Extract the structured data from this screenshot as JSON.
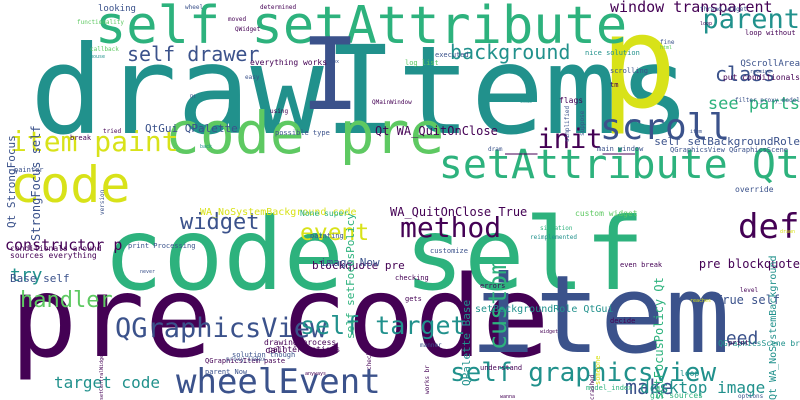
{
  "palette": {
    "dark_purple": "#440154",
    "indigo": "#3b528b",
    "teal": "#21918c",
    "green": "#2db27d",
    "lime": "#5ec962",
    "yellow": "#d8e219",
    "background": "#ffffff"
  },
  "words": [
    {
      "text": "code self",
      "color": "#2db27d"
    },
    {
      "text": "pre code",
      "color": "#440154"
    },
    {
      "text": "item",
      "color": "#3b528b"
    },
    {
      "text": "drawItems",
      "color": "#21918c"
    },
    {
      "text": "p",
      "color": "#d8e219"
    },
    {
      "text": "self setAttribute",
      "color": "#2db27d"
    },
    {
      "text": "code pre",
      "color": "#5ec962"
    },
    {
      "text": "code",
      "color": "#d8e219"
    },
    {
      "text": "I",
      "color": "#3b528b"
    },
    {
      "text": "setAttribute Qt",
      "color": "#2db27d"
    },
    {
      "text": "wheelEvent",
      "color": "#3b528b"
    },
    {
      "text": "self graphicsview",
      "color": "#21918c"
    },
    {
      "text": "QGraphicsView",
      "color": "#3b528b"
    },
    {
      "text": "self target",
      "color": "#21918c"
    },
    {
      "text": "scroll",
      "color": "#3b528b"
    },
    {
      "text": "item paint",
      "color": "#d8e219"
    },
    {
      "text": "method",
      "color": "#440154"
    },
    {
      "text": "def",
      "color": "#440154"
    },
    {
      "text": "self drawer",
      "color": "#3b528b"
    },
    {
      "text": "background",
      "color": "#21918c"
    },
    {
      "text": "__init__",
      "color": "#440154"
    },
    {
      "text": "widget",
      "color": "#3b528b"
    },
    {
      "text": "event",
      "color": "#d8e219"
    },
    {
      "text": "custom",
      "color": "#2db27d"
    },
    {
      "text": "class",
      "color": "#3b528b"
    },
    {
      "text": "parent",
      "color": "#21918c"
    },
    {
      "text": "see parts",
      "color": "#2db27d"
    },
    {
      "text": "window transparent",
      "color": "#440154"
    },
    {
      "text": "handler",
      "color": "#5ec962"
    },
    {
      "text": "try",
      "color": "#21918c"
    },
    {
      "text": "need",
      "color": "#3b528b"
    },
    {
      "text": "make",
      "color": "#3b528b"
    },
    {
      "text": "target code",
      "color": "#21918c"
    },
    {
      "text": "desktop image",
      "color": "#21918c"
    },
    {
      "text": "constructor p",
      "color": "#440154"
    },
    {
      "text": "Qt StrongFocus",
      "color": "#3b528b"
    },
    {
      "text": "StrongFocus self",
      "color": "#3b528b"
    },
    {
      "text": "Qt WA_QuitOnClose",
      "color": "#440154"
    },
    {
      "text": "WA_QuitOnClose True",
      "color": "#440154"
    },
    {
      "text": "self setBackgroundRole",
      "color": "#3b528b"
    },
    {
      "text": "True self",
      "color": "#3b528b"
    },
    {
      "text": "pre blockquote",
      "color": "#440154"
    },
    {
      "text": "blockquote pre",
      "color": "#440154"
    },
    {
      "text": "image Now",
      "color": "#3b528b"
    },
    {
      "text": "Base self",
      "color": "#3b528b"
    },
    {
      "text": "QtGui QPalette",
      "color": "#3b528b"
    },
    {
      "text": "WA_NoSystemBackground code",
      "color": "#d8e219"
    },
    {
      "text": "self setFocusPolicy",
      "color": "#2db27d"
    },
    {
      "text": "setFocusPolicy Qt",
      "color": "#2db27d"
    },
    {
      "text": "QPalette Base",
      "color": "#21918c"
    },
    {
      "text": "setBackgroundRole QtGui",
      "color": "#21918c"
    },
    {
      "text": "Qt WA_NoSystemBackground",
      "color": "#21918c"
    },
    {
      "text": "custom widget",
      "color": "#5ec962"
    },
    {
      "text": "None super",
      "color": "#2db27d"
    },
    {
      "text": "print Processing",
      "color": "#3b528b"
    },
    {
      "text": "possible type",
      "color": "#3b528b"
    },
    {
      "text": "everything works",
      "color": "#440154"
    },
    {
      "text": "looking",
      "color": "#3b528b"
    },
    {
      "text": "functionality",
      "color": "#5ec962"
    },
    {
      "text": "nice solution",
      "color": "#21918c"
    },
    {
      "text": "executed",
      "color": "#3b528b"
    },
    {
      "text": "log_list",
      "color": "#5ec962"
    },
    {
      "text": "loop without",
      "color": "#440154"
    },
    {
      "text": "QScrollArea",
      "color": "#3b528b"
    },
    {
      "text": "put conditionals",
      "color": "#440154"
    },
    {
      "text": "filter_proxy_model",
      "color": "#3b528b"
    },
    {
      "text": "flags",
      "color": "#440154"
    },
    {
      "text": "tm",
      "color": "#440154"
    },
    {
      "text": "main window",
      "color": "#3b528b"
    },
    {
      "text": "QGraphicsView QGraphicsScene",
      "color": "#3b528b"
    },
    {
      "text": "override",
      "color": "#3b528b"
    },
    {
      "text": "QGraphicsScene br",
      "color": "#21918c"
    },
    {
      "text": "drawing process",
      "color": "#440154"
    },
    {
      "text": "painter options",
      "color": "#440154"
    },
    {
      "text": "solution though",
      "color": "#3b528b"
    },
    {
      "text": "QGraphicsItem paste",
      "color": "#440154"
    },
    {
      "text": "parent Now",
      "color": "#3b528b"
    },
    {
      "text": "call",
      "color": "#440154"
    },
    {
      "text": "proxy_index",
      "color": "#3b528b"
    },
    {
      "text": "conditionals around",
      "color": "#440154"
    },
    {
      "text": "sources everything",
      "color": "#440154"
    },
    {
      "text": "painting",
      "color": "#3b528b"
    },
    {
      "text": "customize",
      "color": "#3b528b"
    },
    {
      "text": "checking",
      "color": "#440154"
    },
    {
      "text": "errors",
      "color": "#440154"
    },
    {
      "text": "gets",
      "color": "#440154"
    },
    {
      "text": "even break",
      "color": "#440154"
    },
    {
      "text": "decide",
      "color": "#440154"
    },
    {
      "text": "print",
      "color": "#440154"
    },
    {
      "text": "painter",
      "color": "#3b528b"
    },
    {
      "text": "loop",
      "color": "#21918c"
    },
    {
      "text": "options",
      "color": "#3b528b"
    },
    {
      "text": "break",
      "color": "#440154"
    },
    {
      "text": "dram",
      "color": "#3b528b"
    },
    {
      "text": "situation",
      "color": "#2db27d"
    },
    {
      "text": "understand",
      "color": "#440154"
    },
    {
      "text": "model_index",
      "color": "#2db27d"
    },
    {
      "text": "git sources",
      "color": "#2db27d"
    },
    {
      "text": "thread_widget",
      "color": "#3b528b"
    },
    {
      "text": "moved",
      "color": "#440154"
    },
    {
      "text": "determined",
      "color": "#440154"
    },
    {
      "text": "wheel",
      "color": "#3b528b"
    },
    {
      "text": "QWidget",
      "color": "#440154"
    },
    {
      "text": "fine",
      "color": "#3b528b"
    },
    {
      "text": "scrolling",
      "color": "#3b528b"
    },
    {
      "text": "reimplemented",
      "color": "#21918c"
    },
    {
      "text": "someone",
      "color": "#d8e219"
    },
    {
      "text": "QMainWindow",
      "color": "#440154"
    },
    {
      "text": "suppose",
      "color": "#3b528b"
    },
    {
      "text": "simplified",
      "color": "#3b528b"
    },
    {
      "text": "manner",
      "color": "#3b528b"
    },
    {
      "text": "check",
      "color": "#440154"
    },
    {
      "text": "works br",
      "color": "#440154"
    },
    {
      "text": "setCentralWidget",
      "color": "#440154"
    },
    {
      "text": "anyways",
      "color": "#440154"
    },
    {
      "text": "wanna",
      "color": "#440154"
    },
    {
      "text": "crashed",
      "color": "#440154"
    },
    {
      "text": "reaches",
      "color": "#d8e219"
    },
    {
      "text": "version",
      "color": "#3b528b"
    },
    {
      "text": "tried",
      "color": "#440154"
    },
    {
      "text": "never",
      "color": "#3b528b"
    },
    {
      "text": "using",
      "color": "#440154"
    },
    {
      "text": "callback",
      "color": "#5ec962"
    },
    {
      "text": "receive",
      "color": "#3b528b"
    },
    {
      "text": "mouse",
      "color": "#21918c"
    },
    {
      "text": "level",
      "color": "#440154"
    },
    {
      "text": "easy",
      "color": "#3b528b"
    },
    {
      "text": "Qt",
      "color": "#3b528b"
    },
    {
      "text": "back",
      "color": "#21918c"
    },
    {
      "text": "code",
      "color": "#21918c"
    },
    {
      "text": "item",
      "color": "#3b528b"
    },
    {
      "text": "widget",
      "color": "#440154"
    },
    {
      "text": "loop",
      "color": "#440154"
    },
    {
      "text": "box",
      "color": "#3b528b"
    },
    {
      "text": "html",
      "color": "#5ec962"
    },
    {
      "text": "drawn",
      "color": "#d8e219"
    },
    {
      "text": "result",
      "color": "#440154"
    }
  ]
}
